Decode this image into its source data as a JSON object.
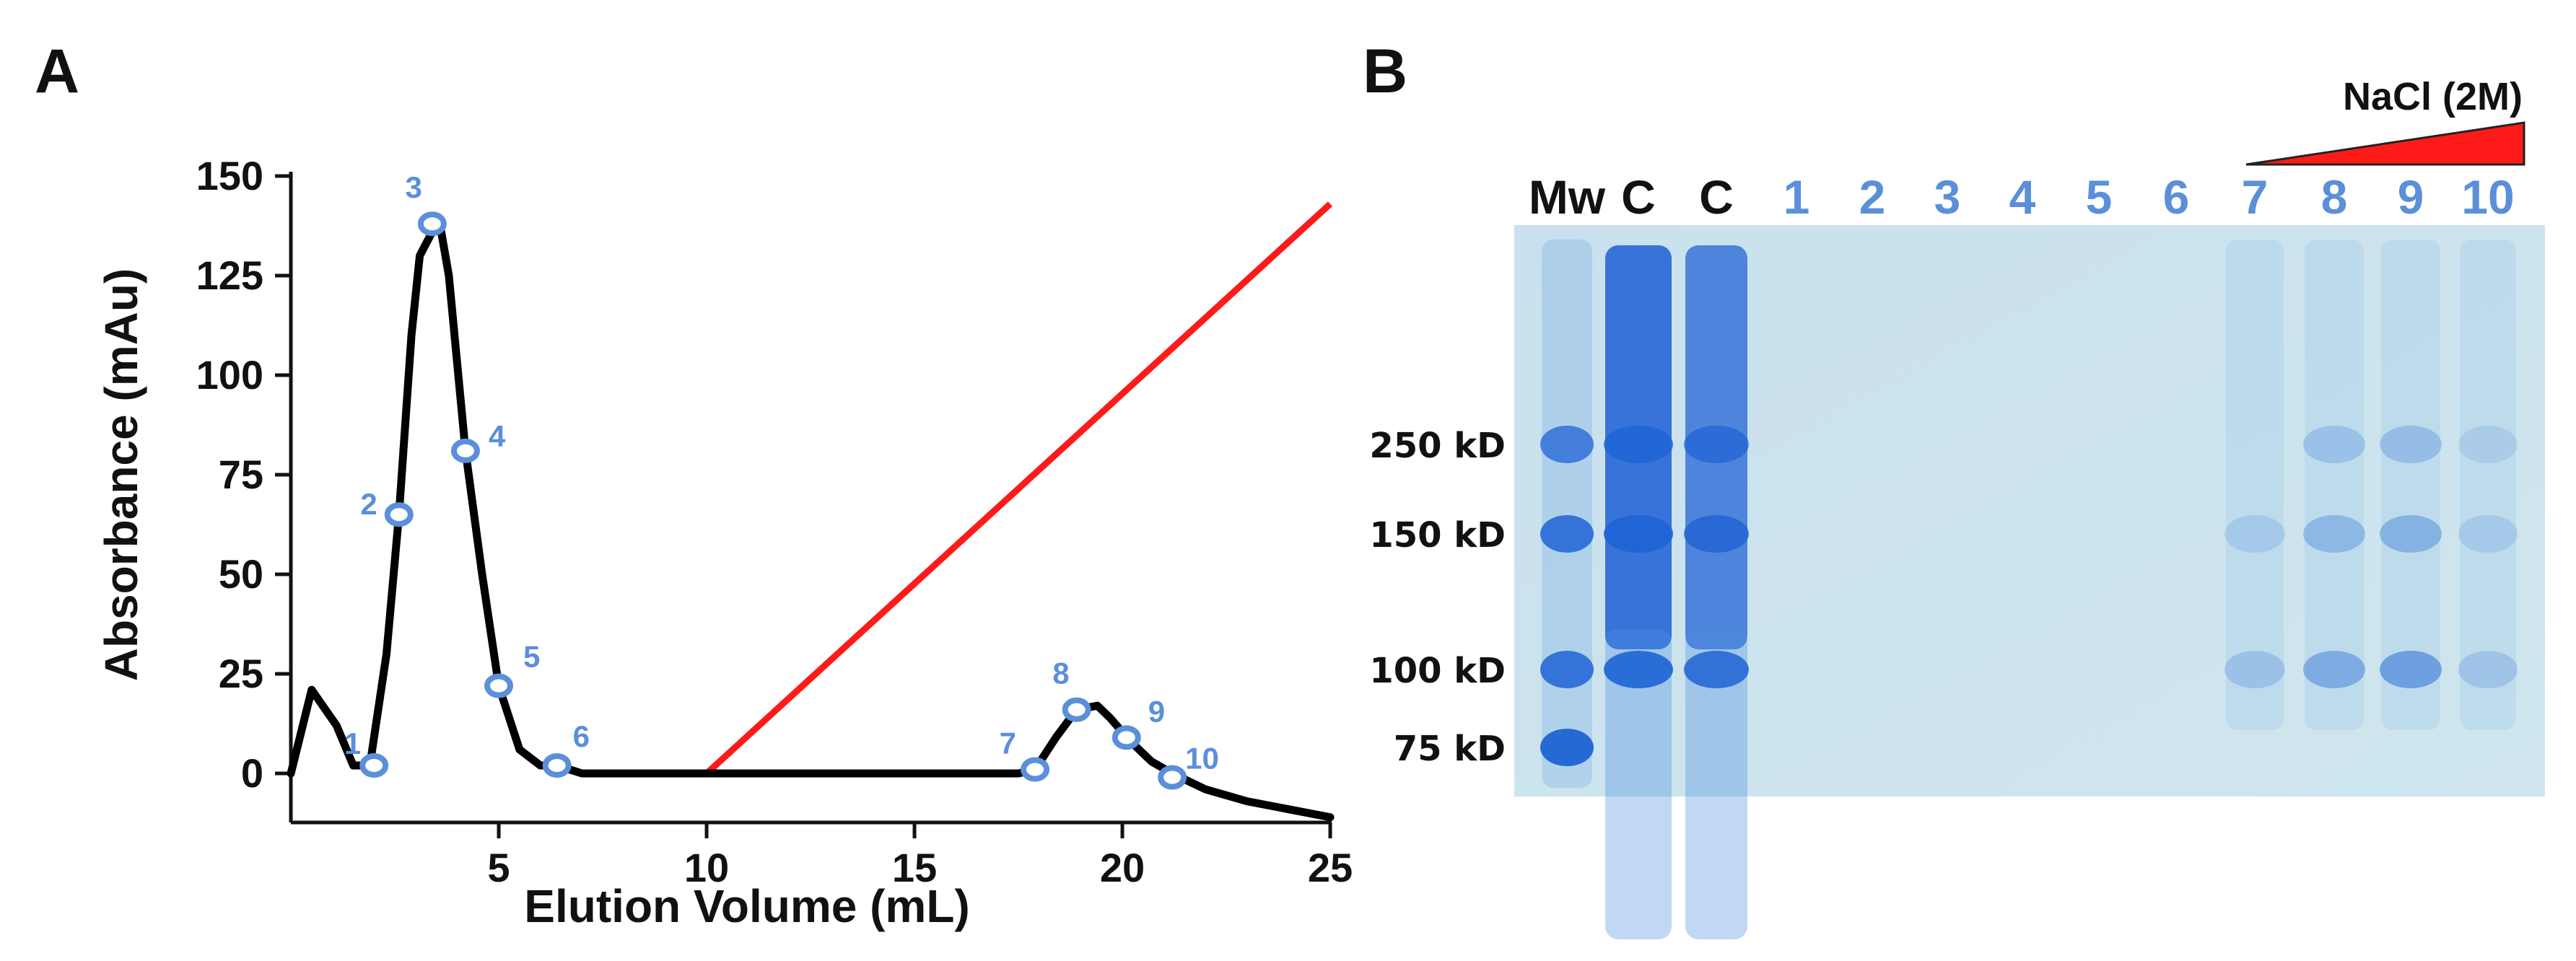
{
  "chart_data": [
    {
      "panel": "A",
      "type": "line",
      "xlabel": "Elution Volume (mL)",
      "ylabel": "Absorbance (mAu)",
      "xlim": [
        0,
        25
      ],
      "ylim": [
        0,
        150
      ],
      "x_ticks": [
        5,
        10,
        15,
        20,
        25
      ],
      "y_ticks": [
        0,
        25,
        50,
        75,
        100,
        125,
        150
      ],
      "grid": false,
      "colors": {
        "absorbance": "#000000",
        "gradient": "#ff1a1a",
        "fractions": "#5b8fd9"
      },
      "series": [
        {
          "x": [
            0.0,
            0.5,
            1.1,
            1.5,
            1.9,
            2.3,
            2.6,
            2.9,
            3.1,
            3.4,
            3.6,
            3.8,
            4.2,
            4.6,
            5.0,
            5.5,
            6.0,
            6.4,
            7.0,
            9.0,
            10.0,
            12.0,
            15.0,
            17.5,
            17.9,
            18.4,
            18.9,
            19.4,
            19.7,
            20.2,
            20.7,
            21.2,
            22.0,
            23.0,
            24.0,
            25.0
          ],
          "y": [
            0,
            21,
            12,
            2,
            2,
            30,
            65,
            110,
            130,
            136,
            137,
            125,
            81,
            50,
            22,
            6,
            2,
            2,
            0,
            0,
            0,
            0,
            0,
            0,
            1,
            9,
            16,
            17,
            14,
            8,
            3,
            0,
            -4,
            -7,
            -9,
            -11
          ]
        },
        {
          "x": [
            10.0,
            25.0
          ],
          "y": [
            0,
            143
          ]
        }
      ],
      "fractions": [
        {
          "label": "1",
          "x": 2.0,
          "y": 2
        },
        {
          "label": "2",
          "x": 2.6,
          "y": 65
        },
        {
          "label": "3",
          "x": 3.4,
          "y": 138
        },
        {
          "label": "4",
          "x": 4.2,
          "y": 81
        },
        {
          "label": "5",
          "x": 5.0,
          "y": 22
        },
        {
          "label": "6",
          "x": 6.4,
          "y": 2
        },
        {
          "label": "7",
          "x": 17.9,
          "y": 1
        },
        {
          "label": "8",
          "x": 18.9,
          "y": 16
        },
        {
          "label": "9",
          "x": 20.1,
          "y": 9
        },
        {
          "label": "10",
          "x": 21.2,
          "y": -1
        }
      ]
    }
  ],
  "panels": {
    "a": {
      "letter": "A"
    },
    "b": {
      "letter": "B",
      "gradient_label": "NaCl (2M)",
      "gradient_color": "#ff1a1a",
      "lanes": [
        {
          "label": "Mw",
          "color": "#111111",
          "bands": [
            {
              "kD": 250,
              "i": 0.75
            },
            {
              "kD": 150,
              "i": 0.85
            },
            {
              "kD": 100,
              "i": 0.85
            },
            {
              "kD": 75,
              "i": 0.95
            }
          ]
        },
        {
          "label": "C",
          "color": "#111111",
          "bands": [
            {
              "kD": 250,
              "i": 0.8
            },
            {
              "kD": 150,
              "i": 0.9
            },
            {
              "kD": 100,
              "i": 0.9
            }
          ]
        },
        {
          "label": "C",
          "color": "#111111",
          "bands": [
            {
              "kD": 250,
              "i": 0.7
            },
            {
              "kD": 150,
              "i": 0.8
            },
            {
              "kD": 100,
              "i": 0.85
            }
          ]
        },
        {
          "label": "1",
          "color": "#5b8fd9",
          "bands": []
        },
        {
          "label": "2",
          "color": "#5b8fd9",
          "bands": []
        },
        {
          "label": "3",
          "color": "#5b8fd9",
          "bands": []
        },
        {
          "label": "4",
          "color": "#5b8fd9",
          "bands": []
        },
        {
          "label": "5",
          "color": "#5b8fd9",
          "bands": []
        },
        {
          "label": "6",
          "color": "#5b8fd9",
          "bands": []
        },
        {
          "label": "7",
          "color": "#5b8fd9",
          "bands": [
            {
              "kD": 150,
              "i": 0.15
            },
            {
              "kD": 100,
              "i": 0.22
            }
          ]
        },
        {
          "label": "8",
          "color": "#5b8fd9",
          "bands": [
            {
              "kD": 250,
              "i": 0.22
            },
            {
              "kD": 150,
              "i": 0.3
            },
            {
              "kD": 100,
              "i": 0.4
            }
          ]
        },
        {
          "label": "9",
          "color": "#5b8fd9",
          "bands": [
            {
              "kD": 250,
              "i": 0.25
            },
            {
              "kD": 150,
              "i": 0.35
            },
            {
              "kD": 100,
              "i": 0.5
            }
          ]
        },
        {
          "label": "10",
          "color": "#5b8fd9",
          "bands": [
            {
              "kD": 250,
              "i": 0.12
            },
            {
              "kD": 150,
              "i": 0.15
            },
            {
              "kD": 100,
              "i": 0.2
            }
          ]
        }
      ],
      "markers": [
        {
          "label": "250 kD",
          "kD": 250
        },
        {
          "label": "150 kD",
          "kD": 150
        },
        {
          "label": "100 kD",
          "kD": 100
        },
        {
          "label": "75 kD",
          "kD": 75
        }
      ]
    }
  }
}
